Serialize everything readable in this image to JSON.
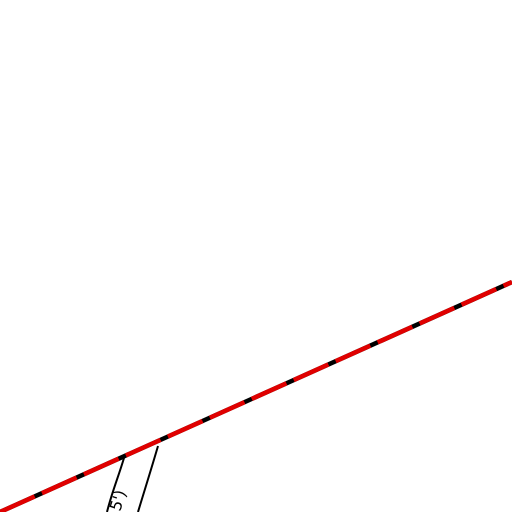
{
  "map": {
    "background_color": "#ffffff",
    "boundary_line": {
      "style": "dashed",
      "dash_color": "#e00000",
      "casing_color": "#000000"
    },
    "road_segment": {
      "stroke_color": "#000000",
      "label": "5')"
    }
  }
}
